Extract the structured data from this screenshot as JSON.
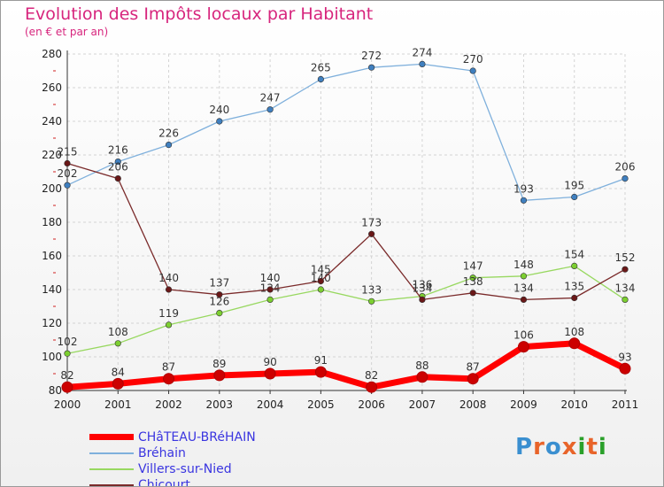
{
  "chart_data": {
    "type": "line",
    "title": "Evolution des Impôts locaux par Habitant",
    "subtitle": "(en € et par an)",
    "categories": [
      "2000",
      "2001",
      "2002",
      "2003",
      "2004",
      "2005",
      "2006",
      "2007",
      "2008",
      "2009",
      "2010",
      "2011"
    ],
    "ylim": [
      80,
      280
    ],
    "yticks": [
      80,
      100,
      120,
      140,
      160,
      180,
      200,
      220,
      240,
      260,
      280
    ],
    "grid": true,
    "legend_position": "bottom-left",
    "series": [
      {
        "name": "CHâTEAU-BRéHAIN",
        "color": "#ff0000",
        "marker_color": "#cc0000",
        "emphasis": true,
        "values": [
          82,
          84,
          87,
          89,
          90,
          91,
          82,
          88,
          87,
          106,
          108,
          93
        ]
      },
      {
        "name": "Bréhain",
        "color": "#7fb0dc",
        "marker_color": "#3f7fbf",
        "emphasis": false,
        "values": [
          202,
          216,
          226,
          240,
          247,
          265,
          272,
          274,
          270,
          193,
          195,
          206
        ]
      },
      {
        "name": "Villers-sur-Nied",
        "color": "#98d860",
        "marker_color": "#7ccf30",
        "emphasis": false,
        "values": [
          102,
          108,
          119,
          126,
          134,
          140,
          133,
          136,
          147,
          148,
          154,
          134
        ]
      },
      {
        "name": "Chicourt",
        "color": "#7a2a2a",
        "marker_color": "#6a1818",
        "emphasis": false,
        "values": [
          215,
          206,
          140,
          137,
          140,
          145,
          173,
          134,
          138,
          134,
          135,
          152
        ]
      }
    ]
  },
  "logo": {
    "text": "Proxiti",
    "colors": [
      "#3a8fd0",
      "#e8642a",
      "#3a8fd0",
      "#e8642a",
      "#2aa02a",
      "#e8642a",
      "#2aa02a"
    ]
  }
}
